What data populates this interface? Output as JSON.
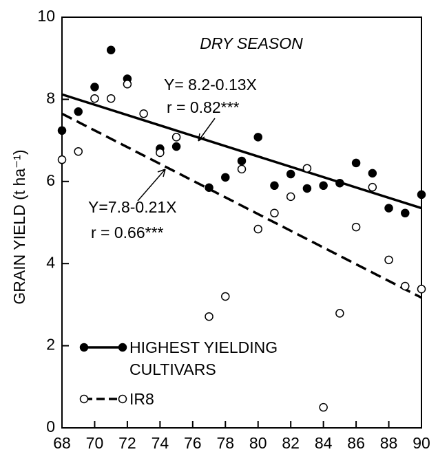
{
  "chart_data": {
    "type": "scatter",
    "title": "DRY SEASON",
    "y_label": "GRAIN YIELD (t ha⁻¹)",
    "xlim": [
      68,
      90
    ],
    "xticks": [
      68,
      70,
      72,
      74,
      76,
      78,
      80,
      82,
      84,
      86,
      88,
      90
    ],
    "ylim": [
      0,
      10
    ],
    "yticks": [
      0,
      2,
      4,
      6,
      8,
      10
    ],
    "annotations": [
      "Y= 8.2-0.13X",
      "r = 0.82***",
      "Y=7.8-0.21X",
      "r = 0.66***"
    ],
    "series": [
      {
        "name": "HIGHEST YIELDING\nCULTIVARS",
        "color": "#000",
        "marker": "filled",
        "x": [
          68,
          69,
          70,
          71,
          72,
          74,
          75,
          77,
          78,
          79,
          80,
          81,
          82,
          83,
          84,
          85,
          86,
          87,
          88,
          89,
          90
        ],
        "values": [
          7.24,
          7.7,
          8.3,
          9.2,
          8.5,
          6.8,
          6.85,
          5.85,
          6.1,
          6.5,
          7.08,
          5.9,
          6.18,
          5.83,
          5.9,
          5.96,
          6.45,
          6.2,
          5.35,
          5.23,
          5.68
        ],
        "fit": {
          "x": [
            68,
            90
          ],
          "values": [
            8.12,
            5.35
          ],
          "dashed": false
        }
      },
      {
        "name": "IR8",
        "color": "#000",
        "marker": "open",
        "x": [
          68,
          69,
          70,
          71,
          72,
          73,
          74,
          75,
          77,
          78,
          79,
          80,
          81,
          82,
          83,
          84,
          85,
          86,
          87,
          88,
          89,
          90
        ],
        "values": [
          6.53,
          6.73,
          8.02,
          8.02,
          8.37,
          7.65,
          6.7,
          7.08,
          2.71,
          3.2,
          6.3,
          4.84,
          5.23,
          5.63,
          6.32,
          0.5,
          2.79,
          4.89,
          5.86,
          4.09,
          3.45,
          3.38
        ],
        "fit": {
          "x": [
            68,
            90
          ],
          "values": [
            7.65,
            3.17
          ],
          "dashed": true
        }
      }
    ]
  }
}
